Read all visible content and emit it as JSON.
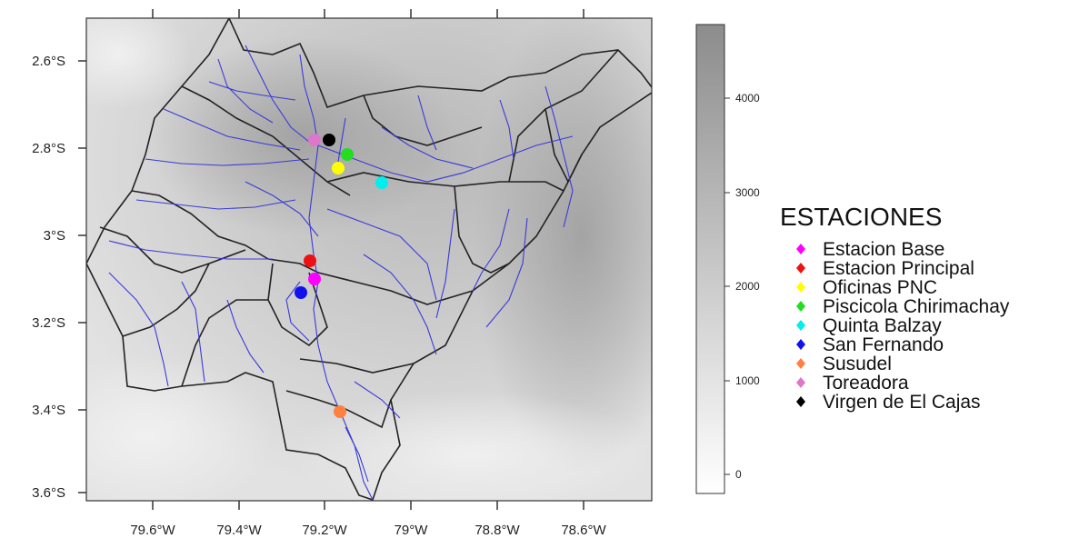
{
  "map": {
    "x_tick_labels": [
      "79.6°W",
      "79.4°W",
      "79.2°W",
      "79°W",
      "78.8°W",
      "78.6°W"
    ],
    "y_tick_labels": [
      "2.6°S",
      "2.8°S",
      "3°S",
      "3.2°S",
      "3.4°S",
      "3.6°S"
    ]
  },
  "colorbar": {
    "tick_labels": [
      "0",
      "1000",
      "2000",
      "3000",
      "4000"
    ],
    "colors": {
      "low": "#ffffff",
      "high": "#8c8c8c"
    }
  },
  "legend": {
    "title": "ESTACIONES",
    "stations": [
      {
        "name": "Estacion Base",
        "color": "#ff00ff"
      },
      {
        "name": "Estacion Principal",
        "color": "#ee1111"
      },
      {
        "name": "Oficinas PNC",
        "color": "#ffff00"
      },
      {
        "name": "Piscicola Chirimachay",
        "color": "#22dd22"
      },
      {
        "name": "Quinta Balzay",
        "color": "#00eeee"
      },
      {
        "name": "San Fernando",
        "color": "#1111ee"
      },
      {
        "name": "Susudel",
        "color": "#ff8040"
      },
      {
        "name": "Toreadora",
        "color": "#dd77cc"
      },
      {
        "name": "Virgen de El Cajas",
        "color": "#000000"
      }
    ]
  },
  "colors": {
    "rivers": "#3a3ad8",
    "boundaries": "#222222"
  }
}
